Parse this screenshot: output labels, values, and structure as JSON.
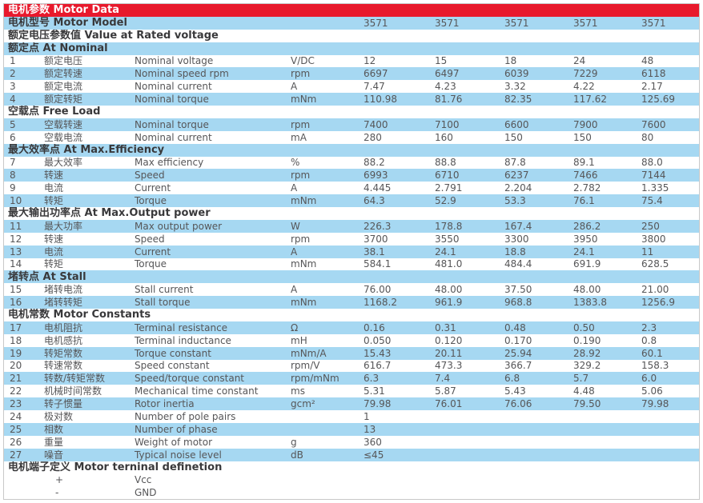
{
  "title": "电机参数 Motor Data",
  "colors": {
    "header_red": "#e8192c",
    "row_blue": "#a6d8f2",
    "row_white": "#ffffff",
    "title_text": "#ffffff",
    "heading_text": "#39393b",
    "body_text": "#565658",
    "border_gray": "#c8c8c8"
  },
  "table": {
    "rows": [
      {
        "type": "title",
        "text": "电机参数 Motor Data"
      },
      {
        "type": "model",
        "label": "电机型号 Motor Model",
        "values": [
          "3571",
          "3571",
          "3571",
          "3571",
          "3571"
        ]
      },
      {
        "type": "section",
        "text": "额定电压参数值 Value at Rated voltage"
      },
      {
        "type": "section",
        "text": "额定点 At Nominal"
      },
      {
        "type": "data",
        "num": "1",
        "cn": "额定电压",
        "en": "Nominal voltage",
        "unit": "V/DC",
        "values": [
          "12",
          "15",
          "18",
          "24",
          "48"
        ]
      },
      {
        "type": "data",
        "num": "2",
        "cn": "额定转速",
        "en": "Nominal speed rpm",
        "unit": "rpm",
        "values": [
          "6697",
          "6497",
          "6039",
          "7229",
          "6118"
        ]
      },
      {
        "type": "data",
        "num": "3",
        "cn": "额定电流",
        "en": "Nominal current",
        "unit": "A",
        "values": [
          "7.47",
          "4.23",
          "3.32",
          "4.22",
          "2.17"
        ]
      },
      {
        "type": "data",
        "num": "4",
        "cn": "额定转矩",
        "en": "Nominal torque",
        "unit": "mNm",
        "values": [
          "110.98",
          "81.76",
          "82.35",
          "117.62",
          "125.69"
        ]
      },
      {
        "type": "section",
        "text": "空载点 Free Load"
      },
      {
        "type": "data",
        "num": "5",
        "cn": "空载转速",
        "en": "Nominal torque",
        "unit": "rpm",
        "values": [
          "7400",
          "7100",
          "6600",
          "7900",
          "7600"
        ]
      },
      {
        "type": "data",
        "num": "6",
        "cn": "空载电流",
        "en": "Nominal current",
        "unit": "mA",
        "values": [
          "280",
          "160",
          "150",
          "150",
          "80"
        ]
      },
      {
        "type": "section",
        "text": "最大效率点 At Max.Efficiency"
      },
      {
        "type": "data",
        "num": "7",
        "cn": "最大效率",
        "en": "Max efficiency",
        "unit": "%",
        "values": [
          "88.2",
          "88.8",
          "87.8",
          "89.1",
          "88.0"
        ]
      },
      {
        "type": "data",
        "num": "8",
        "cn": "转速",
        "en": "Speed",
        "unit": "rpm",
        "values": [
          "6993",
          "6710",
          "6237",
          "7466",
          "7144"
        ]
      },
      {
        "type": "data",
        "num": "9",
        "cn": "电流",
        "en": "Current",
        "unit": "A",
        "values": [
          "4.445",
          "2.791",
          "2.204",
          "2.782",
          "1.335"
        ]
      },
      {
        "type": "data",
        "num": "10",
        "cn": "转矩",
        "en": "Torque",
        "unit": "mNm",
        "values": [
          "64.3",
          "52.9",
          "53.3",
          "76.1",
          "75.4"
        ]
      },
      {
        "type": "section",
        "text": "最大输出功率点 At Max.Output power"
      },
      {
        "type": "data",
        "num": "11",
        "cn": "最大功率",
        "en": "Max output power",
        "unit": "W",
        "values": [
          "226.3",
          "178.8",
          "167.4",
          "286.2",
          "250"
        ]
      },
      {
        "type": "data",
        "num": "12",
        "cn": "转速",
        "en": "Speed",
        "unit": "rpm",
        "values": [
          "3700",
          "3550",
          "3300",
          "3950",
          "3800"
        ]
      },
      {
        "type": "data",
        "num": "13",
        "cn": "电流",
        "en": "Current",
        "unit": "A",
        "values": [
          "38.1",
          "24.1",
          "18.8",
          "24.1",
          "11"
        ]
      },
      {
        "type": "data",
        "num": "14",
        "cn": "转矩",
        "en": "Torque",
        "unit": "mNm",
        "values": [
          "584.1",
          "481.0",
          "484.4",
          "691.9",
          "628.5"
        ]
      },
      {
        "type": "section",
        "text": "堵转点 At Stall"
      },
      {
        "type": "data",
        "num": "15",
        "cn": "堵转电流",
        "en": "Stall current",
        "unit": "A",
        "values": [
          "76.00",
          "48.00",
          "37.50",
          "48.00",
          "21.00"
        ]
      },
      {
        "type": "data",
        "num": "16",
        "cn": "堵转转矩",
        "en": "Stall torque",
        "unit": "mNm",
        "values": [
          "1168.2",
          "961.9",
          "968.8",
          "1383.8",
          "1256.9"
        ]
      },
      {
        "type": "section",
        "text": "电机常数 Motor Constants"
      },
      {
        "type": "data",
        "num": "17",
        "cn": "电机阻抗",
        "en": "Terminal resistance",
        "unit": "Ω",
        "values": [
          "0.16",
          "0.31",
          "0.48",
          "0.50",
          "2.3"
        ]
      },
      {
        "type": "data",
        "num": "18",
        "cn": "电机感抗",
        "en": "Terminal inductance",
        "unit": "mH",
        "values": [
          "0.050",
          "0.120",
          "0.170",
          "0.190",
          "0.8"
        ]
      },
      {
        "type": "data",
        "num": "19",
        "cn": "转矩常数",
        "en": "Torque constant",
        "unit": "mNm/A",
        "values": [
          "15.43",
          "20.11",
          "25.94",
          "28.92",
          "60.1"
        ]
      },
      {
        "type": "data",
        "num": "20",
        "cn": "转速常数",
        "en": "Speed constant",
        "unit": "rpm/V",
        "values": [
          "616.7",
          "473.3",
          "366.7",
          "329.2",
          "158.3"
        ]
      },
      {
        "type": "data",
        "num": "21",
        "cn": "转数/转矩常数",
        "en": "Speed/torque constant",
        "unit": "rpm/mNm",
        "values": [
          "6.3",
          "7.4",
          "6.8",
          "5.7",
          "6.0"
        ]
      },
      {
        "type": "data",
        "num": "22",
        "cn": "机械时间常数",
        "en": "Mechanical time constant",
        "unit": "ms",
        "values": [
          "5.31",
          "5.87",
          "5.43",
          "4.48",
          "5.06"
        ]
      },
      {
        "type": "data",
        "num": "23",
        "cn": "转子惯量",
        "en": "Rotor inertia",
        "unit": "gcm²",
        "values": [
          "79.98",
          "76.01",
          "76.06",
          "79.50",
          "79.98"
        ]
      },
      {
        "type": "data",
        "num": "24",
        "cn": "极对数",
        "en": "Number of pole pairs",
        "unit": "",
        "values": [
          "1",
          "",
          "",
          "",
          ""
        ]
      },
      {
        "type": "data",
        "num": "25",
        "cn": "相数",
        "en": "Number of phase",
        "unit": "",
        "values": [
          "13",
          "",
          "",
          "",
          ""
        ]
      },
      {
        "type": "data",
        "num": "26",
        "cn": "重量",
        "en": "Weight of motor",
        "unit": "g",
        "values": [
          "360",
          "",
          "",
          "",
          ""
        ]
      },
      {
        "type": "data",
        "num": "27",
        "cn": "噪音",
        "en": "Typical noise level",
        "unit": "dB",
        "values": [
          "≤45",
          "",
          "",
          "",
          ""
        ]
      },
      {
        "type": "section",
        "text": "电机端子定义 Motor terninal definetion"
      },
      {
        "type": "terminal",
        "sign": "+",
        "label": "Vcc"
      },
      {
        "type": "terminal",
        "sign": "-",
        "label": "GND"
      }
    ]
  }
}
